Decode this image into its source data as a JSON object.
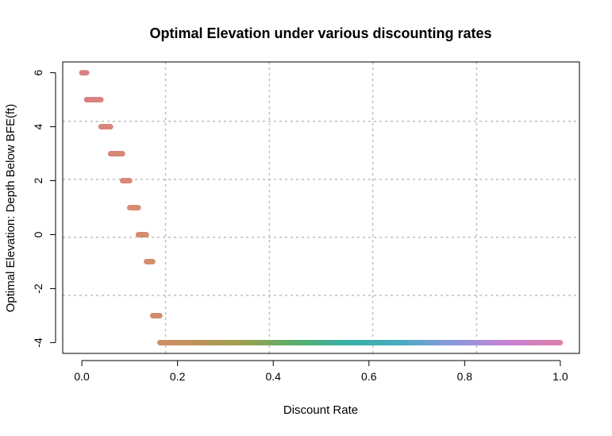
{
  "chart_data": {
    "type": "scatter",
    "title": "Optimal Elevation under various discounting rates",
    "xlabel": "Discount Rate",
    "ylabel": "Optimal Elevation: Depth Below BFE(ft)",
    "xlim": [
      -0.04,
      1.04
    ],
    "ylim": [
      -4.4,
      6.4
    ],
    "x_ticks": [
      0.0,
      0.2,
      0.4,
      0.6,
      0.8,
      1.0
    ],
    "x_tick_labels": [
      "0.0",
      "0.2",
      "0.4",
      "0.6",
      "0.8",
      "1.0"
    ],
    "y_ticks": [
      -4,
      -2,
      0,
      2,
      4,
      6
    ],
    "y_tick_labels": [
      "-4",
      "-2",
      "0",
      "2",
      "4",
      "6"
    ],
    "grid": "dotted",
    "grid_x": [
      0.175,
      0.392,
      0.608,
      0.825
    ],
    "grid_y": [
      -2.25,
      -0.1,
      2.05,
      4.2
    ],
    "segments": [
      {
        "y": 6,
        "x_start": 0.0,
        "x_end": 0.01
      },
      {
        "y": 5,
        "x_start": 0.01,
        "x_end": 0.04
      },
      {
        "y": 4,
        "x_start": 0.04,
        "x_end": 0.06
      },
      {
        "y": 3,
        "x_start": 0.06,
        "x_end": 0.085
      },
      {
        "y": 2,
        "x_start": 0.085,
        "x_end": 0.1
      },
      {
        "y": 1,
        "x_start": 0.1,
        "x_end": 0.118
      },
      {
        "y": 0,
        "x_start": 0.118,
        "x_end": 0.135
      },
      {
        "y": -1,
        "x_start": 0.135,
        "x_end": 0.148
      },
      {
        "y": -3,
        "x_start": 0.148,
        "x_end": 0.163
      },
      {
        "y": -4,
        "x_start": 0.163,
        "x_end": 1.0
      }
    ],
    "point_step": 0.001,
    "colors": {
      "gradient": [
        "#d97f86",
        "#d98a72",
        "#c4915e",
        "#a0a04e",
        "#5dad6a",
        "#36b0a4",
        "#4aabc0",
        "#8a99dc",
        "#c582d2",
        "#dc7fae"
      ],
      "grid": "#bdbdbd",
      "frame": "#000000"
    }
  }
}
